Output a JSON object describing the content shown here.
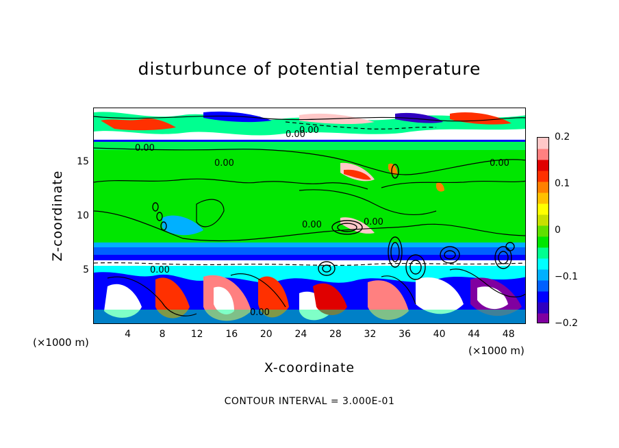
{
  "chart_data": {
    "type": "heatmap",
    "title": "disturbunce of potential temperature",
    "xlabel": "X-coordinate",
    "ylabel": "Z-coordinate",
    "x_unit": "(×1000 m)",
    "x_ticks": [
      "4",
      "8",
      "12",
      "16",
      "20",
      "24",
      "28",
      "32",
      "36",
      "40",
      "44",
      "48"
    ],
    "x_tick_values": [
      4,
      8,
      12,
      16,
      20,
      24,
      28,
      32,
      36,
      40,
      44,
      48
    ],
    "y_ticks": [
      "5",
      "10",
      "15"
    ],
    "y_tick_values": [
      5,
      10,
      15
    ],
    "xlim": [
      0,
      50
    ],
    "ylim": [
      0,
      20
    ],
    "colorbar": {
      "range": [
        -0.2,
        0.2
      ],
      "ticks": [
        "0.2",
        "0.1",
        "0",
        "−0.1",
        "−0.2"
      ],
      "tick_values": [
        0.2,
        0.1,
        0,
        -0.1,
        -0.2
      ],
      "colors": [
        "#8000a0",
        "#3000c0",
        "#0000ff",
        "#0060ff",
        "#00b0ff",
        "#00ffff",
        "#00ff90",
        "#00e600",
        "#60e000",
        "#c8e000",
        "#ffff00",
        "#ffc000",
        "#ff8000",
        "#ff3000",
        "#e00000",
        "#ff8080",
        "#ffc8c8"
      ]
    },
    "contour_labels": [
      "0.00",
      "0.00",
      "0.00",
      "0.00",
      "0.00",
      "0.00",
      "0.00",
      "0.00",
      "0.00"
    ],
    "contour_interval": "CONTOUR INTERVAL = 3.000E-01"
  }
}
